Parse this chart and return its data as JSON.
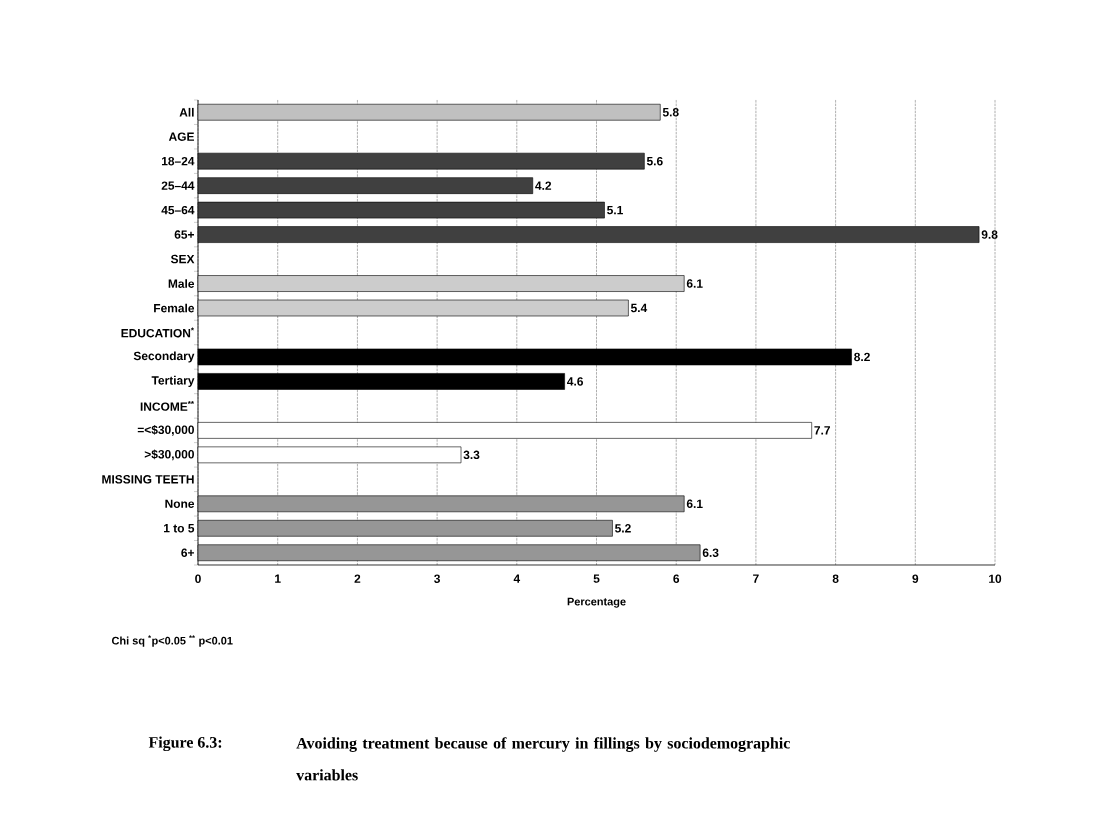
{
  "chart_data": {
    "type": "bar",
    "orientation": "horizontal",
    "title": "Figure 6.3:",
    "subtitle": "Avoiding treatment because of mercury in fillings by sociodemographic variables",
    "xlabel": "Percentage",
    "annotations": [
      "Chi sq $^{*}$p<0.05  $^{**}$ p<0.01"
    ],
    "categories": [
      "All",
      "AGE",
      "18–24",
      "25–44",
      "45–64",
      "65+",
      "SEX",
      "Male",
      "Female",
      "EDUCATION$^{*}$",
      "Secondary",
      "Tertiary",
      "INCOME$^{**}$",
      "=<$30,000",
      ">$30,000",
      "MISSING TEETH",
      "None",
      "1 to 5",
      "6+"
    ],
    "values": [
      5.8,
      null,
      5.6,
      4.2,
      5.1,
      9.8,
      null,
      6.1,
      5.4,
      null,
      8.2,
      4.6,
      null,
      7.7,
      3.3,
      null,
      6.1,
      5.2,
      6.3
    ],
    "colors": [
      "#c0c0c0",
      null,
      "#404040",
      "#404040",
      "#404040",
      "#404040",
      null,
      "#cccccc",
      "#cccccc",
      null,
      "#000000",
      "#000000",
      null,
      "#ffffff",
      "#ffffff",
      null,
      "#969696",
      "#969696",
      "#969696"
    ],
    "data_labels": true,
    "xlim": [
      0,
      10
    ],
    "xticks": [
      0,
      1,
      2,
      3,
      4,
      5,
      6,
      7,
      8,
      9,
      10
    ],
    "grid": "x"
  }
}
